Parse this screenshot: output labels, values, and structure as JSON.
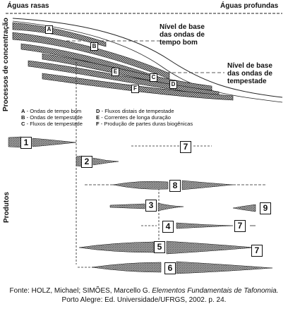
{
  "header": {
    "shallow": "Águas rasas",
    "deep": "Águas profundas"
  },
  "axes": {
    "top": "Processos de concentração",
    "bottom": "Produtos"
  },
  "levels": {
    "fair": [
      "Nível de base",
      "das ondas de",
      "tempo bom"
    ],
    "storm": [
      "Nível de base",
      "das ondas de",
      "tempestade"
    ]
  },
  "bands": [
    "A",
    "B",
    "C",
    "D",
    "E",
    "F"
  ],
  "legend": [
    {
      "key": "A",
      "text": " - Ondas de tempo bom"
    },
    {
      "key": "B",
      "text": " - Ondas de tempestade"
    },
    {
      "key": "C",
      "text": " - Fluxos de tempestade"
    },
    {
      "key": "D",
      "text": " - Fluxos distais de tempestade"
    },
    {
      "key": "E",
      "text": " - Correntes de longa duração"
    },
    {
      "key": "F",
      "text": " - Produção de partes duras biogênicas"
    }
  ],
  "products": [
    "1",
    "2",
    "3",
    "4",
    "5",
    "6",
    "7",
    "7",
    "7",
    "8",
    "9"
  ],
  "caption": {
    "prefix": "Fonte: HOLZ, Michael; SIMÕES, Marcello G. ",
    "title": "Elementos Fundamentais de Tafonomia.",
    "line2": "Porto Alegre: Ed. Universidade/UFRGS, 2002. p. 24."
  }
}
